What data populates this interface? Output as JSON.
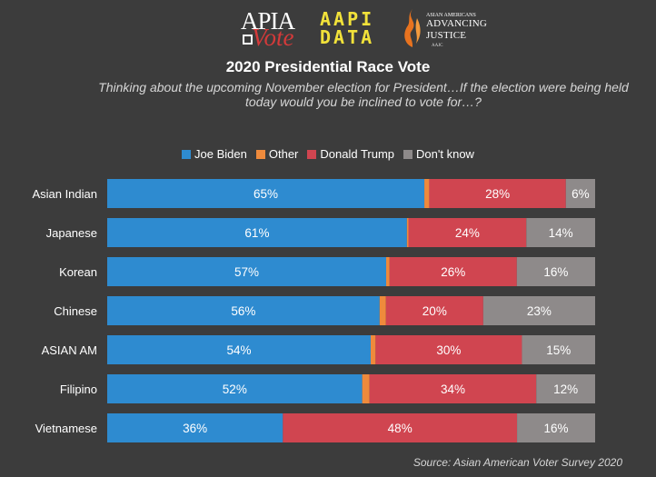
{
  "logos": {
    "apia_vote": {
      "line1": "APIA",
      "line2": "Vote"
    },
    "aapi_data": {
      "line1": "AAPI",
      "line2": "DATA"
    },
    "aajc": {
      "line1": "ASIAN AMERICANS",
      "line2": "ADVANCING",
      "line3": "JUSTICE",
      "line4": "AAJC"
    }
  },
  "colors": {
    "Joe Biden": "#2e8bd0",
    "Other": "#ee8a3c",
    "Donald Trump": "#d04550",
    "Don't know": "#8e8a8a",
    "background": "#3c3c3c"
  },
  "chart_data": {
    "type": "bar",
    "orientation": "horizontal",
    "stacked": true,
    "title": "2020 Presidential Race Vote",
    "subtitle": "Thinking about the upcoming November election for President…If the election were being held today would you be inclined to vote for…?",
    "legend_position": "top",
    "xlim": [
      0,
      100
    ],
    "grid": false,
    "categories": [
      "Asian Indian",
      "Japanese",
      "Korean",
      "Chinese",
      "ASIAN AM",
      "Filipino",
      "Vietnamese"
    ],
    "series": [
      {
        "name": "Joe Biden",
        "values": [
          65,
          61,
          57,
          56,
          54,
          52,
          36
        ]
      },
      {
        "name": "Other",
        "values": [
          1,
          0.3,
          0.7,
          1.3,
          1,
          1.5,
          0
        ]
      },
      {
        "name": "Donald Trump",
        "values": [
          28,
          24,
          26,
          20,
          30,
          34,
          48
        ]
      },
      {
        "name": "Don't know",
        "values": [
          6,
          14,
          16,
          23,
          15,
          12,
          16
        ]
      }
    ],
    "data_labels": [
      [
        "65%",
        "",
        "28%",
        "6%"
      ],
      [
        "61%",
        "",
        "24%",
        "14%"
      ],
      [
        "57%",
        "",
        "26%",
        "16%"
      ],
      [
        "56%",
        "",
        "20%",
        "23%"
      ],
      [
        "54%",
        "",
        "30%",
        "15%"
      ],
      [
        "52%",
        "",
        "34%",
        "12%"
      ],
      [
        "36%",
        "",
        "48%",
        "16%"
      ]
    ]
  },
  "source": "Source: Asian American Voter Survey 2020"
}
